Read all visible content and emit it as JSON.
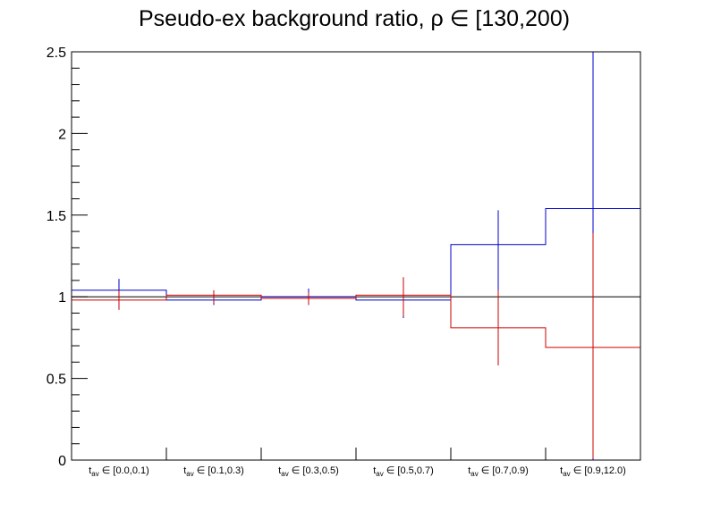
{
  "chart_data": {
    "type": "histogram",
    "title": "Pseudo-ex background ratio,   ρ ∈ [130,200)",
    "xlabel": "",
    "ylabel": "",
    "ylim": [
      0,
      2.5
    ],
    "y_ticks": [
      "0",
      "0.5",
      "1",
      "1.5",
      "2",
      "2.5"
    ],
    "y_tick_values": [
      0,
      0.5,
      1,
      1.5,
      2,
      2.5
    ],
    "grid": false,
    "reference_line": 1,
    "categories": [
      {
        "main": "t",
        "sub": "av",
        "range": " ∈ [0.0,0.1)"
      },
      {
        "main": "t",
        "sub": "av",
        "range": " ∈ [0.1,0.3)"
      },
      {
        "main": "t",
        "sub": "av",
        "range": " ∈ [0.3,0.5)"
      },
      {
        "main": "t",
        "sub": "av",
        "range": " ∈ [0.5,0.7)"
      },
      {
        "main": "t",
        "sub": "av",
        "range": " ∈ [0.7,0.9)"
      },
      {
        "main": "t",
        "sub": "av",
        "range": " ∈ [0.9,12.0)"
      }
    ],
    "series": [
      {
        "color": "#0000cc",
        "values": [
          1.04,
          0.98,
          1.0,
          0.98,
          1.32,
          1.54
        ],
        "errors": [
          0.07,
          0.04,
          0.05,
          0.12,
          0.39,
          1.54
        ],
        "error_markers": [
          1.04,
          0.99,
          1.0,
          0.99,
          1.14,
          1.25
        ]
      },
      {
        "color": "#cc0000",
        "values": [
          0.98,
          1.01,
          0.99,
          1.01,
          0.81,
          0.69
        ],
        "errors": [
          0.06,
          0.04,
          0.04,
          0.12,
          0.23,
          0.69
        ],
        "error_markers": [
          0.98,
          1.0,
          0.99,
          1.0,
          0.81,
          0.7
        ]
      }
    ]
  }
}
